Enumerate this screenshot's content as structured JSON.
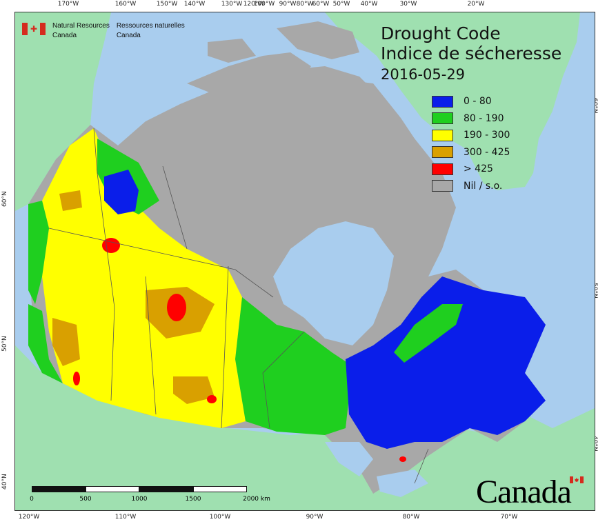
{
  "agency": {
    "en_line1": "Natural Resources",
    "en_line2": "Canada",
    "fr_line1": "Ressources naturelles",
    "fr_line2": "Canada"
  },
  "title": {
    "en": "Drought Code",
    "fr": "Indice de sécheresse",
    "date": "2016-05-29"
  },
  "legend": [
    {
      "label": "0 - 80",
      "color": "#0a1eea"
    },
    {
      "label": "80 - 190",
      "color": "#1fcf1f"
    },
    {
      "label": "190 - 300",
      "color": "#ffff00"
    },
    {
      "label": "300 - 425",
      "color": "#d9a000"
    },
    {
      "label": "> 425",
      "color": "#ff0000"
    },
    {
      "label": "Nil / s.o.",
      "color": "#a8a8a8"
    }
  ],
  "top_ticks": [
    "170°W",
    "160°W",
    "150°W",
    "140°W",
    "130°W",
    "120°W",
    "100°W",
    "90°W",
    "80°W",
    "60°W",
    "50°W",
    "40°W",
    "30°W",
    "20°W"
  ],
  "bottom_ticks": [
    "120°W",
    "110°W",
    "100°W",
    "90°W",
    "80°W",
    "70°W"
  ],
  "left_ticks": [
    "60°N",
    "50°N",
    "40°N"
  ],
  "right_ticks": [
    "60°N",
    "50°N",
    "40°N"
  ],
  "scale": {
    "labels": [
      "0",
      "500",
      "1000",
      "1500",
      "2000 km"
    ]
  },
  "wordmark": "Canada",
  "colors": {
    "ocean": "#a9cdee",
    "land": "#9fe0b0",
    "border": "#555555",
    "nil": "#a8a8a8"
  }
}
